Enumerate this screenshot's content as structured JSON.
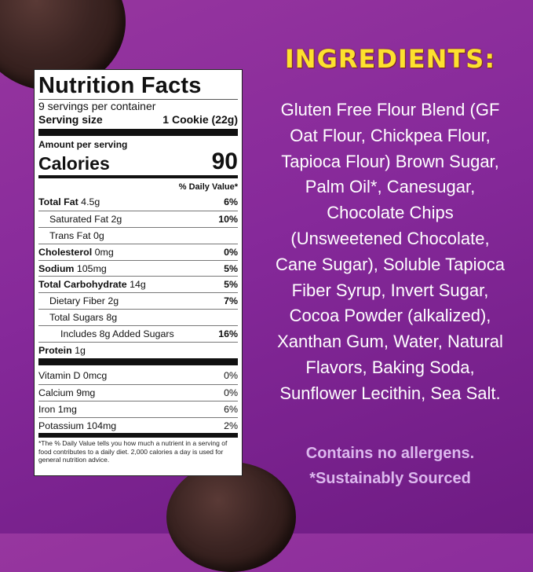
{
  "nutrition": {
    "title": "Nutrition Facts",
    "servings": "9 servings per container",
    "serving_size_label": "Serving size",
    "serving_size_value": "1 Cookie (22g)",
    "amount_per_serving": "Amount per serving",
    "calories_label": "Calories",
    "calories_value": "90",
    "dv_header": "% Daily Value*",
    "rows": [
      {
        "name": "Total Fat",
        "amount": "4.5g",
        "dv": "6%"
      },
      {
        "name": "Saturated Fat",
        "amount": "2g",
        "dv": "10%"
      },
      {
        "name": "Trans Fat",
        "amount": "0g",
        "dv": ""
      },
      {
        "name": "Cholesterol",
        "amount": "0mg",
        "dv": "0%"
      },
      {
        "name": "Sodium",
        "amount": "105mg",
        "dv": "5%"
      },
      {
        "name": "Total Carbohydrate",
        "amount": "14g",
        "dv": "5%"
      },
      {
        "name": "Dietary Fiber",
        "amount": "2g",
        "dv": "7%"
      },
      {
        "name": "Total Sugars",
        "amount": "8g",
        "dv": ""
      },
      {
        "name": "Includes 8g Added Sugars",
        "amount": "",
        "dv": "16%"
      },
      {
        "name": "Protein",
        "amount": "1g",
        "dv": ""
      }
    ],
    "vitamins": [
      {
        "label": "Vitamin D 0mcg",
        "dv": "0%"
      },
      {
        "label": "Calcium 9mg",
        "dv": "0%"
      },
      {
        "label": "Iron 1mg",
        "dv": "6%"
      },
      {
        "label": "Potassium 104mg",
        "dv": "2%"
      }
    ],
    "footnote": "*The % Daily Value tells you how much a nutrient in a serving of food contributes to a daily diet. 2,000 calories a day is used for general nutrition advice."
  },
  "ingredients": {
    "title": "INGREDIENTS:",
    "lines": [
      "Gluten Free Flour Blend (GF",
      "Oat Flour, Chickpea Flour,",
      "Tapioca Flour) Brown Sugar,",
      "Palm Oil*, Canesugar,",
      "Chocolate Chips",
      "(Unsweetened Chocolate,",
      "Cane Sugar), Soluble Tapioca",
      "Fiber Syrup, Invert Sugar,",
      "Cocoa Powder (alkalized),",
      "Xanthan Gum, Water, Natural",
      "Flavors, Baking Soda,",
      "Sunflower Lecithin, Sea Salt."
    ]
  },
  "notes": {
    "allergens": "Contains no allergens.",
    "sourced": "*Sustainably Sourced"
  },
  "colors": {
    "background": "#8a2e9a",
    "title": "#fde12e",
    "notes": "#dcb8ee"
  }
}
